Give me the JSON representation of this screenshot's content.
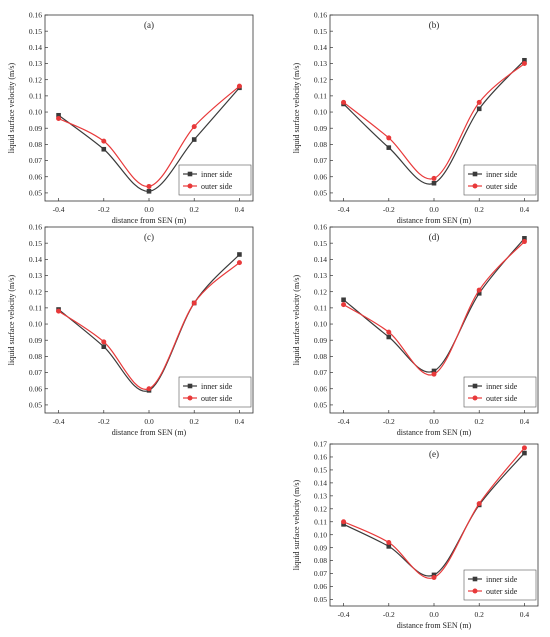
{
  "chart_data": [
    {
      "type": "line",
      "panel_label": "(a)",
      "xlabel": "distance from SEN (m)",
      "ylabel": "liquid surface velocity (m/s)",
      "x": [
        -0.4,
        -0.2,
        0.0,
        0.2,
        0.4
      ],
      "x_tick_labels": [
        "-0.4",
        "-0.2",
        "0.0",
        "0.2",
        "0.4"
      ],
      "xlim": [
        -0.46,
        0.46
      ],
      "ylim": [
        0.045,
        0.16
      ],
      "y_ticks": [
        0.05,
        0.06,
        0.07,
        0.08,
        0.09,
        0.1,
        0.11,
        0.12,
        0.13,
        0.14,
        0.15,
        0.16
      ],
      "y_tick_labels": [
        "0.05",
        "0.06",
        "0.07",
        "0.08",
        "0.09",
        "0.10",
        "0.11",
        "0.12",
        "0.13",
        "0.14",
        "0.15",
        "0.16"
      ],
      "legend_position": "bottom-right",
      "series": [
        {
          "name": "inner side",
          "color": "#3a3a3a",
          "marker": "square",
          "values": [
            0.098,
            0.077,
            0.051,
            0.083,
            0.115
          ]
        },
        {
          "name": "outer side",
          "color": "#e8393a",
          "marker": "circle",
          "values": [
            0.096,
            0.082,
            0.054,
            0.091,
            0.116
          ]
        }
      ]
    },
    {
      "type": "line",
      "panel_label": "(b)",
      "xlabel": "distance from SEN (m)",
      "ylabel": "liquid surface velocity (m/s)",
      "x": [
        -0.4,
        -0.2,
        0.0,
        0.2,
        0.4
      ],
      "x_tick_labels": [
        "-0.4",
        "-0.2",
        "0.0",
        "0.2",
        "0.4"
      ],
      "xlim": [
        -0.46,
        0.46
      ],
      "ylim": [
        0.045,
        0.16
      ],
      "y_ticks": [
        0.05,
        0.06,
        0.07,
        0.08,
        0.09,
        0.1,
        0.11,
        0.12,
        0.13,
        0.14,
        0.15,
        0.16
      ],
      "y_tick_labels": [
        "0.05",
        "0.06",
        "0.07",
        "0.08",
        "0.09",
        "0.10",
        "0.11",
        "0.12",
        "0.13",
        "0.14",
        "0.15",
        "0.16"
      ],
      "legend_position": "bottom-right",
      "series": [
        {
          "name": "inner side",
          "color": "#3a3a3a",
          "marker": "square",
          "values": [
            0.105,
            0.078,
            0.056,
            0.102,
            0.132
          ]
        },
        {
          "name": "outer side",
          "color": "#e8393a",
          "marker": "circle",
          "values": [
            0.106,
            0.084,
            0.059,
            0.106,
            0.13
          ]
        }
      ]
    },
    {
      "type": "line",
      "panel_label": "(c)",
      "xlabel": "distance from SEN (m)",
      "ylabel": "liquid surface velocity (m/s)",
      "x": [
        -0.4,
        -0.2,
        0.0,
        0.2,
        0.4
      ],
      "x_tick_labels": [
        "-0.4",
        "-0.2",
        "0.0",
        "0.2",
        "0.4"
      ],
      "xlim": [
        -0.46,
        0.46
      ],
      "ylim": [
        0.045,
        0.16
      ],
      "y_ticks": [
        0.05,
        0.06,
        0.07,
        0.08,
        0.09,
        0.1,
        0.11,
        0.12,
        0.13,
        0.14,
        0.15,
        0.16
      ],
      "y_tick_labels": [
        "0.05",
        "0.06",
        "0.07",
        "0.08",
        "0.09",
        "0.10",
        "0.11",
        "0.12",
        "0.13",
        "0.14",
        "0.15",
        "0.16"
      ],
      "legend_position": "bottom-right",
      "series": [
        {
          "name": "inner side",
          "color": "#3a3a3a",
          "marker": "square",
          "values": [
            0.109,
            0.086,
            0.059,
            0.113,
            0.143
          ]
        },
        {
          "name": "outer side",
          "color": "#e8393a",
          "marker": "circle",
          "values": [
            0.108,
            0.089,
            0.06,
            0.113,
            0.138
          ]
        }
      ]
    },
    {
      "type": "line",
      "panel_label": "(d)",
      "xlabel": "distance from SEN (m)",
      "ylabel": "liquid surface velocity (m/s)",
      "x": [
        -0.4,
        -0.2,
        0.0,
        0.2,
        0.4
      ],
      "x_tick_labels": [
        "-0.4",
        "-0.2",
        "0.0",
        "0.2",
        "0.4"
      ],
      "xlim": [
        -0.46,
        0.46
      ],
      "ylim": [
        0.045,
        0.16
      ],
      "y_ticks": [
        0.05,
        0.06,
        0.07,
        0.08,
        0.09,
        0.1,
        0.11,
        0.12,
        0.13,
        0.14,
        0.15,
        0.16
      ],
      "y_tick_labels": [
        "0.05",
        "0.06",
        "0.07",
        "0.08",
        "0.09",
        "0.10",
        "0.11",
        "0.12",
        "0.13",
        "0.14",
        "0.15",
        "0.16"
      ],
      "legend_position": "bottom-right",
      "series": [
        {
          "name": "inner side",
          "color": "#3a3a3a",
          "marker": "square",
          "values": [
            0.115,
            0.092,
            0.071,
            0.119,
            0.153
          ]
        },
        {
          "name": "outer side",
          "color": "#e8393a",
          "marker": "circle",
          "values": [
            0.112,
            0.095,
            0.069,
            0.121,
            0.151
          ]
        }
      ]
    },
    {
      "type": "line",
      "panel_label": "(e)",
      "xlabel": "distance from SEN (m)",
      "ylabel": "liquid surface velocity (m/s)",
      "x": [
        -0.4,
        -0.2,
        0.0,
        0.2,
        0.4
      ],
      "x_tick_labels": [
        "-0.4",
        "-0.2",
        "0.0",
        "0.2",
        "0.4"
      ],
      "xlim": [
        -0.46,
        0.46
      ],
      "ylim": [
        0.045,
        0.17
      ],
      "y_ticks": [
        0.05,
        0.06,
        0.07,
        0.08,
        0.09,
        0.1,
        0.11,
        0.12,
        0.13,
        0.14,
        0.15,
        0.16,
        0.17
      ],
      "y_tick_labels": [
        "0.05",
        "0.06",
        "0.07",
        "0.08",
        "0.09",
        "0.10",
        "0.11",
        "0.12",
        "0.13",
        "0.14",
        "0.15",
        "0.16",
        "0.17"
      ],
      "legend_position": "bottom-right",
      "series": [
        {
          "name": "inner side",
          "color": "#3a3a3a",
          "marker": "square",
          "values": [
            0.108,
            0.091,
            0.069,
            0.123,
            0.163
          ]
        },
        {
          "name": "outer side",
          "color": "#e8393a",
          "marker": "circle",
          "values": [
            0.11,
            0.094,
            0.067,
            0.124,
            0.167
          ]
        }
      ]
    }
  ]
}
